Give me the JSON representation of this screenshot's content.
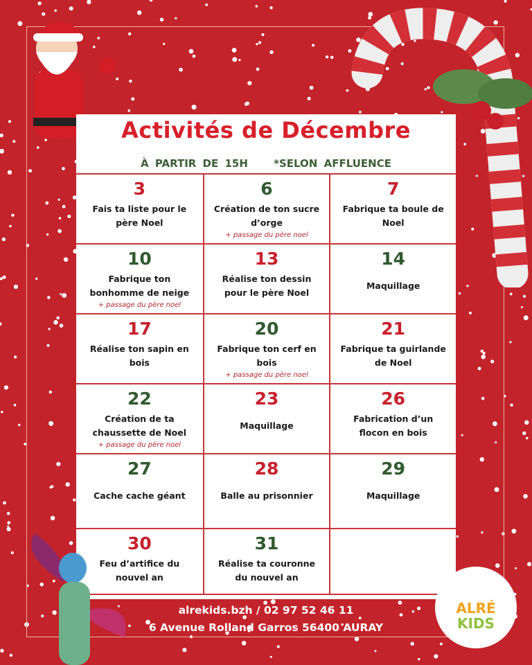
{
  "title": "Activités de Décembre",
  "subtitle": {
    "time": "À PARTIR DE 15H",
    "note": "*SELON AFFLUENCE"
  },
  "colors": {
    "background": "#c3232b",
    "red": "#c8202b",
    "green": "#2f5a2e"
  },
  "rows": [
    [
      {
        "day": "3",
        "color": "red",
        "lines": [
          "Fais ta liste pour le",
          "père Noel"
        ],
        "note": ""
      },
      {
        "day": "6",
        "color": "green",
        "lines": [
          "Création de ton sucre",
          "d’orge"
        ],
        "note": "+ passage du père noel"
      },
      {
        "day": "7",
        "color": "red",
        "lines": [
          "Fabrique ta boule de",
          "Noel"
        ],
        "note": ""
      }
    ],
    [
      {
        "day": "10",
        "color": "green",
        "lines": [
          "Fabrique ton",
          "bonhomme de neige"
        ],
        "note": "+ passage du père noel"
      },
      {
        "day": "13",
        "color": "red",
        "lines": [
          "Réalise ton dessin",
          "pour le père Noel"
        ],
        "note": ""
      },
      {
        "day": "14",
        "color": "green",
        "lines": [
          "Maquillage"
        ],
        "note": ""
      }
    ],
    [
      {
        "day": "17",
        "color": "red",
        "lines": [
          "Réalise ton sapin en",
          "bois"
        ],
        "note": ""
      },
      {
        "day": "20",
        "color": "green",
        "lines": [
          "Fabrique ton cerf en",
          "bois"
        ],
        "note": "+ passage du père noel"
      },
      {
        "day": "21",
        "color": "red",
        "lines": [
          "Fabrique ta guirlande",
          "de Noel"
        ],
        "note": ""
      }
    ],
    [
      {
        "day": "22",
        "color": "green",
        "lines": [
          "Création de ta",
          "chaussette de Noel"
        ],
        "note": "+ passage du père noel"
      },
      {
        "day": "23",
        "color": "red",
        "lines": [
          "Maquillage"
        ],
        "note": ""
      },
      {
        "day": "26",
        "color": "red",
        "lines": [
          "Fabrication d’un",
          "flocon en bois"
        ],
        "note": ""
      }
    ],
    [
      {
        "day": "27",
        "color": "green",
        "lines": [
          "Cache cache géant"
        ],
        "note": ""
      },
      {
        "day": "28",
        "color": "red",
        "lines": [
          "Balle au prisonnier"
        ],
        "note": ""
      },
      {
        "day": "29",
        "color": "green",
        "lines": [
          "Maquillage"
        ],
        "note": ""
      }
    ],
    [
      {
        "day": "30",
        "color": "red",
        "lines": [
          "Feu d’artifice du",
          "nouvel an"
        ],
        "note": ""
      },
      {
        "day": "31",
        "color": "green",
        "lines": [
          "Réalise ta couronne",
          "du nouvel an"
        ],
        "note": ""
      },
      {
        "day": "",
        "color": "red",
        "lines": [],
        "note": ""
      }
    ]
  ],
  "footer": {
    "contact": "alrekids.bzh / 02 97 52 46 11",
    "address": "6 Avenue Rolland Garros 56400 AURAY"
  },
  "logo": {
    "line1": "ALRÉ",
    "line2": "KIDS"
  }
}
